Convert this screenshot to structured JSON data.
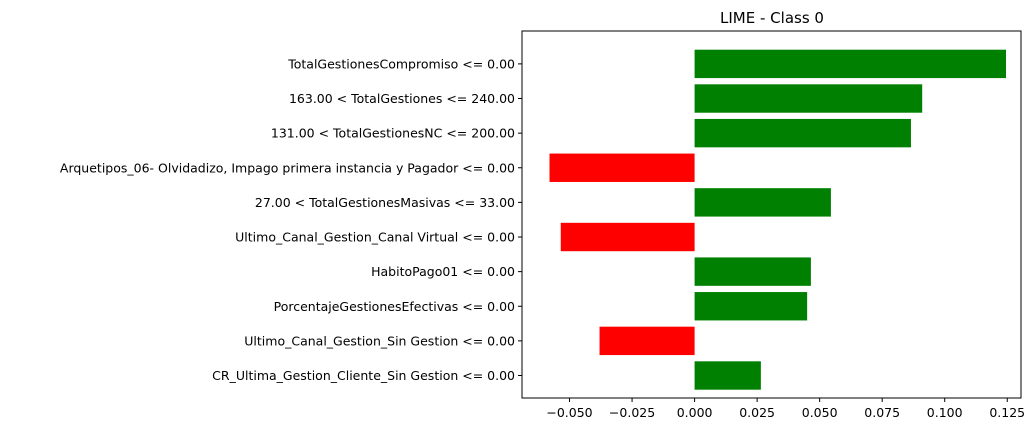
{
  "chart_data": {
    "type": "bar",
    "orientation": "horizontal",
    "title": "LIME - Class 0",
    "xlabel": "",
    "ylabel": "",
    "xlim": [
      -0.069,
      0.1305
    ],
    "categories": [
      "TotalGestionesCompromiso <= 0.00",
      "163.00 < TotalGestiones <= 240.00",
      "131.00 < TotalGestionesNC <= 200.00",
      "Arquetipos_06- Olvidadizo, Impago primera instancia y Pagador <= 0.00",
      "27.00 < TotalGestionesMasivas <= 33.00",
      "Ultimo_Canal_Gestion_Canal Virtual <= 0.00",
      "HabitoPago01 <= 0.00",
      "PorcentajeGestionesEfectivas <= 0.00",
      "Ultimo_Canal_Gestion_Sin Gestion <= 0.00",
      "CR_Ultima_Gestion_Cliente_Sin Gestion <= 0.00"
    ],
    "values": [
      0.1245,
      0.091,
      0.0865,
      -0.058,
      0.0545,
      -0.0535,
      0.0465,
      0.045,
      -0.038,
      0.0265
    ],
    "xticks": [
      -0.05,
      -0.025,
      0.0,
      0.025,
      0.05,
      0.075,
      0.1,
      0.125
    ],
    "xtick_labels": [
      "−0.050",
      "−0.025",
      "0.000",
      "0.025",
      "0.050",
      "0.075",
      "0.100",
      "0.125"
    ],
    "grid": false,
    "legend": "none",
    "colors": {
      "positive": "#008000",
      "negative": "#ff0000",
      "axis": "#000000"
    }
  }
}
